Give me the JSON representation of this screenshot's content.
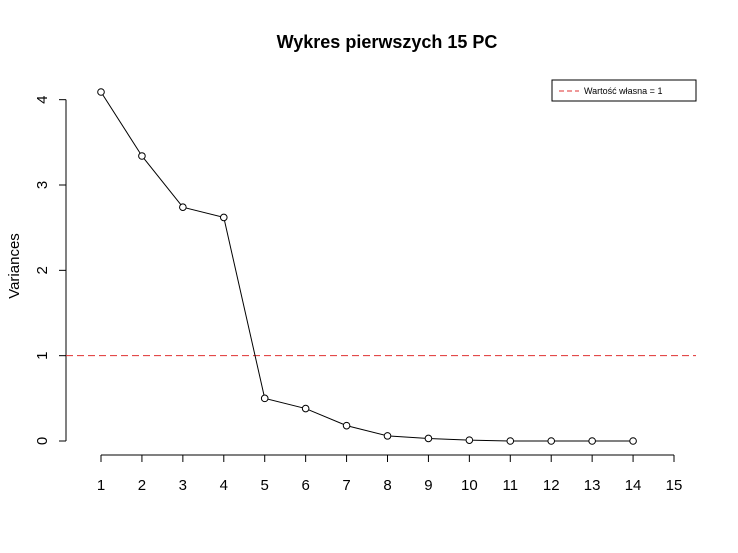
{
  "chart_data": {
    "type": "line",
    "title": "Wykres pierwszych 15 PC",
    "xlabel": "",
    "ylabel": "Variances",
    "x": [
      1,
      2,
      3,
      4,
      5,
      6,
      7,
      8,
      9,
      10,
      11,
      12,
      13,
      14
    ],
    "series": [
      {
        "values": [
          4.09,
          3.34,
          2.74,
          2.62,
          0.5,
          0.38,
          0.18,
          0.06,
          0.03,
          0.01,
          0.0,
          0.0,
          0.0,
          0.0
        ],
        "color": "#000000",
        "marker": "open-circle"
      }
    ],
    "xlim": [
      1,
      15
    ],
    "ylim": [
      0,
      4.09
    ],
    "xticks": [
      1,
      2,
      3,
      4,
      5,
      6,
      7,
      8,
      9,
      10,
      11,
      12,
      13,
      14,
      15
    ],
    "yticks": [
      0,
      1,
      2,
      3,
      4
    ],
    "hline": {
      "y": 1,
      "color": "#DF3030",
      "style": "dashed",
      "label": "Wartość własna = 1"
    },
    "legend": {
      "placement": "top-right",
      "entries": [
        "Wartość własna = 1"
      ]
    },
    "grid": false
  }
}
